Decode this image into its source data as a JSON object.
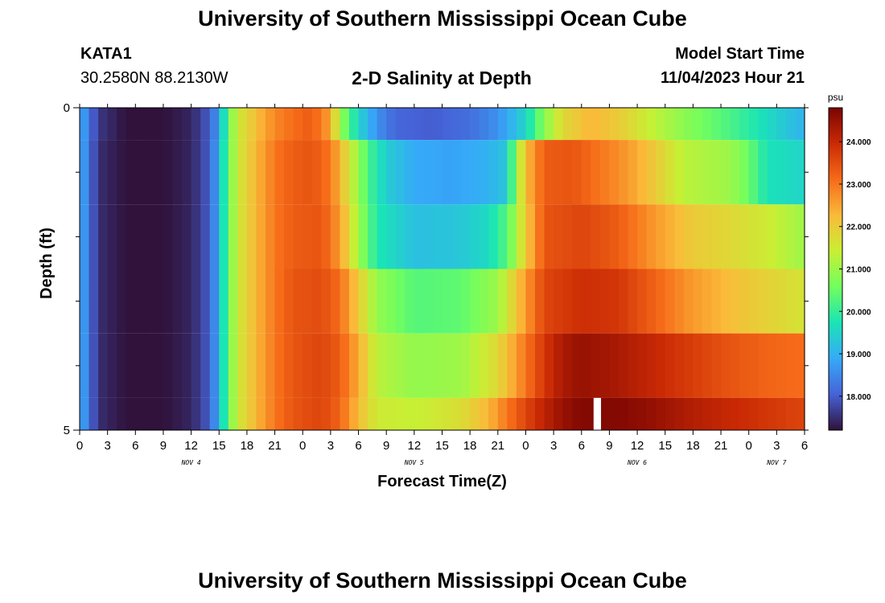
{
  "header": {
    "title": "University of Southern Mississippi Ocean Cube",
    "station": "KATA1",
    "coords": "30.2580N  88.2130W",
    "subtitle": "2-D Salinity at Depth",
    "model_label": "Model Start Time",
    "model_time": "11/04/2023 Hour 21"
  },
  "footer": {
    "title": "University of Southern Mississippi Ocean Cube"
  },
  "chart_data": {
    "type": "heatmap",
    "title": "2-D Salinity at Depth",
    "xlabel": "Forecast Time(Z)",
    "ylabel": "Depth (ft)",
    "x_hours": [
      0,
      3,
      6,
      9,
      12,
      15,
      18,
      21,
      24,
      27,
      30,
      33,
      36,
      39,
      42,
      45,
      48,
      51,
      54,
      57,
      60,
      63,
      66,
      69,
      72,
      75,
      78
    ],
    "x_tick_labels": [
      "0",
      "3",
      "6",
      "9",
      "12",
      "15",
      "18",
      "21",
      "0",
      "3",
      "6",
      "9",
      "12",
      "15",
      "18",
      "21",
      "0",
      "3",
      "6",
      "9",
      "12",
      "15",
      "18",
      "21",
      "0",
      "3",
      "6"
    ],
    "day_labels": [
      {
        "text": "NOV 4",
        "hour": 12
      },
      {
        "text": "NOV 5",
        "hour": 36
      },
      {
        "text": "NOV 6",
        "hour": 60
      },
      {
        "text": "NOV 7",
        "hour": 75
      }
    ],
    "xlim": [
      0,
      78
    ],
    "y_tick_labels": [
      {
        "text": "0",
        "depth": 0
      },
      {
        "text": "5",
        "depth": 5
      }
    ],
    "ylim": [
      0,
      5
    ],
    "depth_bands": [
      {
        "top": 0,
        "bottom": 0.5
      },
      {
        "top": 0.5,
        "bottom": 1.5
      },
      {
        "top": 1.5,
        "bottom": 2.5
      },
      {
        "top": 2.5,
        "bottom": 3.5
      },
      {
        "top": 3.5,
        "bottom": 4.5
      },
      {
        "top": 4.5,
        "bottom": 5
      }
    ],
    "salinity_by_band": [
      [
        [
          0,
          19.0
        ],
        [
          2,
          17.6
        ],
        [
          5,
          17.2
        ],
        [
          9,
          17.2
        ],
        [
          12,
          17.4
        ],
        [
          14,
          18.0
        ],
        [
          15,
          18.8
        ],
        [
          16,
          20.5
        ],
        [
          17,
          21.5
        ],
        [
          19,
          22.2
        ],
        [
          21,
          22.8
        ],
        [
          23,
          23.1
        ],
        [
          25,
          23.3
        ],
        [
          27,
          22.5
        ],
        [
          28,
          21.0
        ],
        [
          30,
          19.5
        ],
        [
          32,
          18.6
        ],
        [
          34,
          18.1
        ],
        [
          38,
          18.0
        ],
        [
          42,
          18.2
        ],
        [
          45,
          18.6
        ],
        [
          48,
          19.5
        ],
        [
          50,
          20.8
        ],
        [
          52,
          21.8
        ],
        [
          55,
          22.3
        ],
        [
          58,
          22.0
        ],
        [
          62,
          21.3
        ],
        [
          66,
          20.7
        ],
        [
          70,
          20.2
        ],
        [
          74,
          19.6
        ],
        [
          78,
          19.0
        ]
      ],
      [
        [
          0,
          19.0
        ],
        [
          2,
          17.5
        ],
        [
          5,
          17.2
        ],
        [
          9,
          17.2
        ],
        [
          12,
          17.4
        ],
        [
          14,
          18.0
        ],
        [
          15,
          19.0
        ],
        [
          16,
          20.5
        ],
        [
          17,
          21.5
        ],
        [
          19,
          22.3
        ],
        [
          21,
          23.0
        ],
        [
          23,
          23.3
        ],
        [
          25,
          23.4
        ],
        [
          27,
          23.0
        ],
        [
          29,
          21.6
        ],
        [
          31,
          20.2
        ],
        [
          33,
          19.4
        ],
        [
          36,
          18.9
        ],
        [
          40,
          18.8
        ],
        [
          44,
          19.0
        ],
        [
          46,
          19.3
        ],
        [
          47,
          21.0
        ],
        [
          48,
          22.2
        ],
        [
          50,
          23.3
        ],
        [
          53,
          23.4
        ],
        [
          56,
          23.0
        ],
        [
          59,
          22.6
        ],
        [
          62,
          22.0
        ],
        [
          65,
          21.3
        ],
        [
          70,
          21.0
        ],
        [
          72,
          20.5
        ],
        [
          74,
          19.7
        ],
        [
          78,
          19.5
        ]
      ],
      [
        [
          0,
          19.0
        ],
        [
          2,
          17.5
        ],
        [
          5,
          17.2
        ],
        [
          9,
          17.2
        ],
        [
          12,
          17.4
        ],
        [
          14,
          18.0
        ],
        [
          15,
          19.0
        ],
        [
          16,
          20.5
        ],
        [
          17,
          21.5
        ],
        [
          19,
          22.3
        ],
        [
          21,
          23.0
        ],
        [
          23,
          23.3
        ],
        [
          26,
          23.4
        ],
        [
          28,
          22.6
        ],
        [
          30,
          21.0
        ],
        [
          32,
          19.8
        ],
        [
          36,
          19.2
        ],
        [
          41,
          19.3
        ],
        [
          44,
          19.6
        ],
        [
          46,
          20.3
        ],
        [
          48,
          22.0
        ],
        [
          50,
          23.4
        ],
        [
          54,
          23.6
        ],
        [
          58,
          23.3
        ],
        [
          62,
          22.6
        ],
        [
          66,
          22.0
        ],
        [
          70,
          21.8
        ],
        [
          74,
          21.5
        ],
        [
          78,
          21.0
        ]
      ],
      [
        [
          0,
          19.0
        ],
        [
          2,
          17.5
        ],
        [
          5,
          17.2
        ],
        [
          9,
          17.2
        ],
        [
          12,
          17.4
        ],
        [
          14,
          18.0
        ],
        [
          15,
          19.0
        ],
        [
          16,
          20.5
        ],
        [
          17,
          21.5
        ],
        [
          19,
          22.3
        ],
        [
          21,
          23.0
        ],
        [
          23,
          23.4
        ],
        [
          26,
          23.5
        ],
        [
          28,
          23.1
        ],
        [
          30,
          22.0
        ],
        [
          32,
          20.9
        ],
        [
          36,
          20.3
        ],
        [
          41,
          20.4
        ],
        [
          45,
          21.0
        ],
        [
          48,
          22.6
        ],
        [
          50,
          23.6
        ],
        [
          54,
          23.9
        ],
        [
          58,
          23.8
        ],
        [
          62,
          23.2
        ],
        [
          66,
          22.6
        ],
        [
          70,
          22.2
        ],
        [
          74,
          21.9
        ],
        [
          78,
          21.6
        ]
      ],
      [
        [
          0,
          19.0
        ],
        [
          2,
          17.5
        ],
        [
          5,
          17.2
        ],
        [
          9,
          17.2
        ],
        [
          12,
          17.4
        ],
        [
          14,
          18.0
        ],
        [
          15,
          19.0
        ],
        [
          16,
          20.5
        ],
        [
          17,
          21.5
        ],
        [
          19,
          22.3
        ],
        [
          21,
          23.0
        ],
        [
          23,
          23.4
        ],
        [
          26,
          23.6
        ],
        [
          28,
          23.3
        ],
        [
          30,
          22.4
        ],
        [
          32,
          21.3
        ],
        [
          36,
          20.9
        ],
        [
          41,
          21.0
        ],
        [
          45,
          21.8
        ],
        [
          48,
          23.0
        ],
        [
          50,
          23.8
        ],
        [
          52,
          24.3
        ],
        [
          54,
          24.5
        ],
        [
          58,
          24.3
        ],
        [
          62,
          24.0
        ],
        [
          66,
          23.7
        ],
        [
          70,
          23.4
        ],
        [
          74,
          23.2
        ],
        [
          78,
          23.1
        ]
      ],
      [
        [
          0,
          19.0
        ],
        [
          2,
          17.5
        ],
        [
          5,
          17.2
        ],
        [
          9,
          17.2
        ],
        [
          12,
          17.4
        ],
        [
          14,
          18.0
        ],
        [
          15,
          19.0
        ],
        [
          16,
          20.5
        ],
        [
          17,
          21.5
        ],
        [
          19,
          22.3
        ],
        [
          21,
          23.0
        ],
        [
          23,
          23.4
        ],
        [
          26,
          23.6
        ],
        [
          28,
          23.2
        ],
        [
          30,
          22.2
        ],
        [
          32,
          21.5
        ],
        [
          36,
          21.4
        ],
        [
          41,
          21.7
        ],
        [
          44,
          22.3
        ],
        [
          46,
          23.0
        ],
        [
          48,
          23.6
        ],
        [
          50,
          24.1
        ],
        [
          52,
          24.5
        ],
        [
          54,
          24.7
        ],
        [
          58,
          24.7
        ],
        [
          62,
          24.5
        ],
        [
          66,
          24.2
        ],
        [
          70,
          24.0
        ],
        [
          74,
          23.8
        ],
        [
          78,
          23.6
        ]
      ]
    ],
    "missing_cell": {
      "band": 5,
      "hour_start": 55.3,
      "hour_end": 56.1
    },
    "colorbar": {
      "unit": "psu",
      "min": 17.2,
      "max": 24.8,
      "tick_values": [
        18,
        19,
        20,
        21,
        22,
        23,
        24
      ],
      "tick_labels": [
        "18.000",
        "19.000",
        "20.000",
        "21.000",
        "22.000",
        "23.000",
        "24.000"
      ],
      "palette": [
        "#30123b",
        "#4662d7",
        "#36aaf9",
        "#1ae4b6",
        "#72fe5e",
        "#c8ef34",
        "#faba39",
        "#f66b19",
        "#ca2a04",
        "#7a0403"
      ]
    }
  }
}
